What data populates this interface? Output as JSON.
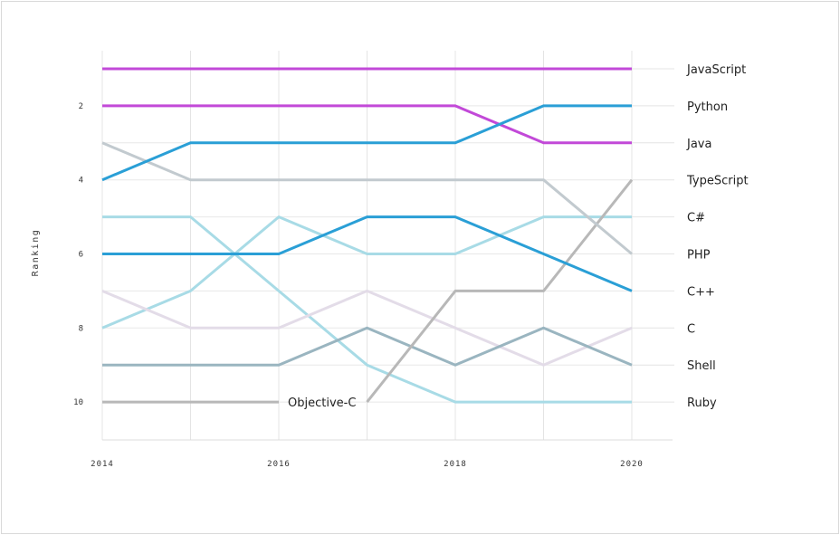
{
  "chart_data": {
    "type": "line",
    "title": "",
    "xlabel": "",
    "ylabel": "Ranking",
    "x": [
      2014,
      2015,
      2016,
      2017,
      2018,
      2019,
      2020
    ],
    "x_ticks": [
      "2014",
      "2016",
      "2018",
      "2020"
    ],
    "x_tick_values": [
      2014,
      2016,
      2018,
      2020
    ],
    "y_ticks": [
      "2",
      "4",
      "6",
      "8",
      "10"
    ],
    "y_tick_values": [
      2,
      4,
      6,
      8,
      10
    ],
    "ylim": [
      11,
      1
    ],
    "xlim": [
      2014,
      2020.5
    ],
    "y_inverted": true,
    "grid": true,
    "legend": "right-end labels",
    "series": [
      {
        "name": "Ruby",
        "color": "#a8dbe6",
        "values": [
          5,
          5,
          7,
          9,
          10,
          10,
          10
        ]
      },
      {
        "name": "C#",
        "color": "#a8dbe6",
        "values": [
          8,
          7,
          5,
          6,
          6,
          5,
          5
        ]
      },
      {
        "name": "C",
        "color": "#e3dce8",
        "values": [
          7,
          8,
          8,
          7,
          8,
          9,
          8
        ]
      },
      {
        "name": "Shell",
        "color": "#9ab5c0",
        "values": [
          9,
          9,
          9,
          8,
          9,
          8,
          9
        ]
      },
      {
        "name": "Objective-C",
        "color": "#b8b8b8",
        "values": [
          10,
          10,
          10,
          null,
          null,
          null,
          null
        ]
      },
      {
        "name": "TypeScript",
        "color": "#b8b8b8",
        "values": [
          null,
          null,
          null,
          10,
          7,
          7,
          4
        ]
      },
      {
        "name": "PHP",
        "color": "#c2cacf",
        "values": [
          3,
          4,
          4,
          4,
          4,
          4,
          6
        ]
      },
      {
        "name": "C++",
        "color": "#2a9fd6",
        "values": [
          6,
          6,
          6,
          5,
          5,
          6,
          7
        ]
      },
      {
        "name": "Java",
        "color": "#c249d8",
        "values": [
          2,
          2,
          2,
          2,
          2,
          3,
          3
        ]
      },
      {
        "name": "Python",
        "color": "#2a9fd6",
        "values": [
          4,
          3,
          3,
          3,
          3,
          2,
          2
        ]
      },
      {
        "name": "JavaScript",
        "color": "#c249d8",
        "values": [
          1,
          1,
          1,
          1,
          1,
          1,
          1
        ]
      }
    ],
    "end_labels": [
      {
        "rank": 1,
        "text": "JavaScript"
      },
      {
        "rank": 2,
        "text": "Python"
      },
      {
        "rank": 3,
        "text": "Java"
      },
      {
        "rank": 4,
        "text": "TypeScript"
      },
      {
        "rank": 5,
        "text": "C#"
      },
      {
        "rank": 6,
        "text": "PHP"
      },
      {
        "rank": 7,
        "text": "C++"
      },
      {
        "rank": 8,
        "text": "C"
      },
      {
        "rank": 9,
        "text": "Shell"
      },
      {
        "rank": 10,
        "text": "Ruby"
      }
    ],
    "annotations": [
      {
        "text": "Objective-C",
        "x": 2016,
        "y": 10
      }
    ]
  }
}
